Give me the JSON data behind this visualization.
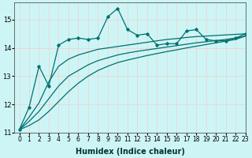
{
  "xlabel": "Humidex (Indice chaleur)",
  "background_color": "#cef5f5",
  "grid_color": "#f5cccc",
  "line_color": "#007070",
  "xlim": [
    -0.5,
    23
  ],
  "ylim": [
    11.0,
    15.6
  ],
  "yticks": [
    11,
    12,
    13,
    14,
    15
  ],
  "xticks": [
    0,
    1,
    2,
    3,
    4,
    5,
    6,
    7,
    8,
    9,
    10,
    11,
    12,
    13,
    14,
    15,
    16,
    17,
    18,
    19,
    20,
    21,
    22,
    23
  ],
  "x": [
    0,
    1,
    2,
    3,
    4,
    5,
    6,
    7,
    8,
    9,
    10,
    11,
    12,
    13,
    14,
    15,
    16,
    17,
    18,
    19,
    20,
    21,
    22,
    23
  ],
  "line1_jagged": [
    11.1,
    11.9,
    13.35,
    12.65,
    14.1,
    14.3,
    14.35,
    14.3,
    14.35,
    15.1,
    15.4,
    14.65,
    14.45,
    14.5,
    14.1,
    14.15,
    14.15,
    14.6,
    14.65,
    14.3,
    14.25,
    14.25,
    14.35,
    14.5
  ],
  "line2_smooth_upper": [
    11.1,
    11.55,
    12.05,
    12.8,
    13.35,
    13.6,
    13.75,
    13.85,
    13.95,
    14.0,
    14.05,
    14.1,
    14.15,
    14.2,
    14.25,
    14.3,
    14.33,
    14.37,
    14.4,
    14.42,
    14.44,
    14.46,
    14.48,
    14.5
  ],
  "line3_smooth_mid": [
    11.1,
    11.4,
    11.75,
    12.2,
    12.65,
    13.0,
    13.2,
    13.4,
    13.55,
    13.65,
    13.75,
    13.82,
    13.88,
    13.93,
    13.98,
    14.03,
    14.08,
    14.13,
    14.18,
    14.22,
    14.26,
    14.3,
    14.35,
    14.42
  ],
  "line4_smooth_lower": [
    11.1,
    11.25,
    11.45,
    11.75,
    12.1,
    12.45,
    12.75,
    13.0,
    13.2,
    13.35,
    13.48,
    13.57,
    13.65,
    13.73,
    13.8,
    13.87,
    13.93,
    14.0,
    14.06,
    14.12,
    14.18,
    14.24,
    14.3,
    14.42
  ]
}
